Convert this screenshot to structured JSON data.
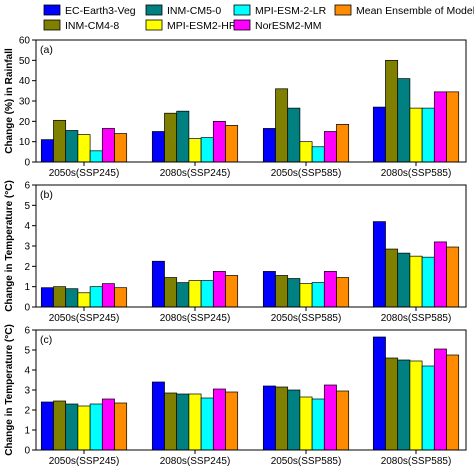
{
  "legend": {
    "items": [
      {
        "label": "EC-Earth3-Veg",
        "color": "#0000FF"
      },
      {
        "label": "INM-CM4-8",
        "color": "#808000"
      },
      {
        "label": "INM-CM5-0",
        "color": "#008080"
      },
      {
        "label": "MPI-ESM2-HR",
        "color": "#FFFF00"
      },
      {
        "label": "MPI-ESM-2-LR",
        "color": "#00FFFF"
      },
      {
        "label": "NorESM2-MM",
        "color": "#FF00FF"
      },
      {
        "label": "Mean Ensemble of Models",
        "color": "#FF8C00"
      }
    ]
  },
  "chart_data": [
    {
      "type": "bar",
      "panel_label": "(a)",
      "ylabel": "Change (%) in Rainfall",
      "ylim": [
        0,
        60
      ],
      "yticks": [
        0,
        10,
        20,
        30,
        40,
        50,
        60
      ],
      "tick_labels": [
        "0",
        "10",
        "20",
        "30",
        "40",
        "50",
        "60"
      ],
      "categories": [
        "2050s(SSP245)",
        "2080s(SSP245)",
        "2050s(SSP585)",
        "2080s(SSP585)"
      ],
      "series": [
        {
          "name": "EC-Earth3-Veg",
          "values": [
            11,
            15,
            16.5,
            27
          ]
        },
        {
          "name": "INM-CM4-8",
          "values": [
            20.5,
            24,
            36,
            50
          ]
        },
        {
          "name": "INM-CM5-0",
          "values": [
            15.5,
            25,
            26.5,
            41
          ]
        },
        {
          "name": "MPI-ESM2-HR",
          "values": [
            13.5,
            11.5,
            10,
            26.5
          ]
        },
        {
          "name": "MPI-ESM-2-LR",
          "values": [
            5.5,
            12,
            7.5,
            26.5
          ]
        },
        {
          "name": "NorESM2-MM",
          "values": [
            16.5,
            20,
            15,
            34.5
          ]
        },
        {
          "name": "Mean Ensemble of Models",
          "values": [
            14,
            18,
            18.5,
            34.5
          ]
        }
      ]
    },
    {
      "type": "bar",
      "panel_label": "(b)",
      "ylabel": "Change in Temperature (°C)",
      "ylim": [
        0,
        6
      ],
      "yticks": [
        0,
        1,
        2,
        3,
        4,
        5,
        6
      ],
      "tick_labels": [
        "0",
        "1",
        "2",
        "3",
        "4",
        "5",
        "6"
      ],
      "categories": [
        "2050s(SSP245)",
        "2080s(SSP245)",
        "2050s(SSP585)",
        "2080s(SSP585)"
      ],
      "series": [
        {
          "name": "EC-Earth3-Veg",
          "values": [
            0.95,
            2.25,
            1.75,
            4.2
          ]
        },
        {
          "name": "INM-CM4-8",
          "values": [
            1.0,
            1.45,
            1.55,
            2.85
          ]
        },
        {
          "name": "INM-CM5-0",
          "values": [
            0.9,
            1.2,
            1.4,
            2.65
          ]
        },
        {
          "name": "MPI-ESM2-HR",
          "values": [
            0.7,
            1.3,
            1.15,
            2.5
          ]
        },
        {
          "name": "MPI-ESM-2-LR",
          "values": [
            1.0,
            1.3,
            1.2,
            2.45
          ]
        },
        {
          "name": "NorESM2-MM",
          "values": [
            1.15,
            1.75,
            1.75,
            3.2
          ]
        },
        {
          "name": "Mean Ensemble of Models",
          "values": [
            0.95,
            1.55,
            1.45,
            2.95
          ]
        }
      ]
    },
    {
      "type": "bar",
      "panel_label": "(c)",
      "ylabel": "Change in Temperature (°C)",
      "ylim": [
        0,
        6
      ],
      "yticks": [
        0,
        1,
        2,
        3,
        4,
        5,
        6
      ],
      "tick_labels": [
        "0",
        "1",
        "2",
        "3",
        "4",
        "5",
        "6"
      ],
      "categories": [
        "2050s(SSP245)",
        "2080s(SSP245)",
        "2050s(SSP585)",
        "2080s(SSP585)"
      ],
      "series": [
        {
          "name": "EC-Earth3-Veg",
          "values": [
            2.4,
            3.4,
            3.2,
            5.65
          ]
        },
        {
          "name": "INM-CM4-8",
          "values": [
            2.45,
            2.85,
            3.15,
            4.6
          ]
        },
        {
          "name": "INM-CM5-0",
          "values": [
            2.3,
            2.8,
            3.0,
            4.5
          ]
        },
        {
          "name": "MPI-ESM2-HR",
          "values": [
            2.2,
            2.8,
            2.65,
            4.45
          ]
        },
        {
          "name": "MPI-ESM-2-LR",
          "values": [
            2.3,
            2.6,
            2.55,
            4.2
          ]
        },
        {
          "name": "NorESM2-MM",
          "values": [
            2.55,
            3.05,
            3.25,
            5.05
          ]
        },
        {
          "name": "Mean Ensemble of Models",
          "values": [
            2.35,
            2.9,
            2.95,
            4.75
          ]
        }
      ]
    }
  ]
}
